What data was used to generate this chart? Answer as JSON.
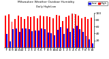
{
  "title": "Milwaukee Weather Outdoor Humidity",
  "subtitle": "Daily High/Low",
  "high_values": [
    93,
    97,
    75,
    83,
    93,
    88,
    82,
    90,
    88,
    90,
    85,
    92,
    90,
    90,
    88,
    85,
    95,
    92,
    77,
    88,
    92,
    98,
    97,
    92,
    85,
    88,
    83,
    87
  ],
  "low_values": [
    38,
    18,
    52,
    55,
    45,
    55,
    55,
    52,
    47,
    48,
    48,
    55,
    53,
    42,
    40,
    35,
    50,
    58,
    38,
    55,
    45,
    55,
    62,
    52,
    45,
    32,
    22,
    12
  ],
  "x_labels": [
    "7",
    "8",
    "9",
    "10",
    "11",
    "12",
    "1",
    "2",
    "3",
    "4",
    "5",
    "6",
    "7",
    "8",
    "9",
    "10",
    "11",
    "12",
    "1",
    "2",
    "3",
    "4",
    "5",
    "6",
    "7",
    "8",
    "9",
    "10"
  ],
  "high_color": "#ff0000",
  "low_color": "#0000ff",
  "bg_color": "#ffffff",
  "ylim": [
    0,
    100
  ],
  "yticks": [
    20,
    40,
    60,
    80,
    100
  ],
  "legend_high": "High",
  "legend_low": "Low",
  "dashed_lines": [
    20.5,
    21.5
  ]
}
